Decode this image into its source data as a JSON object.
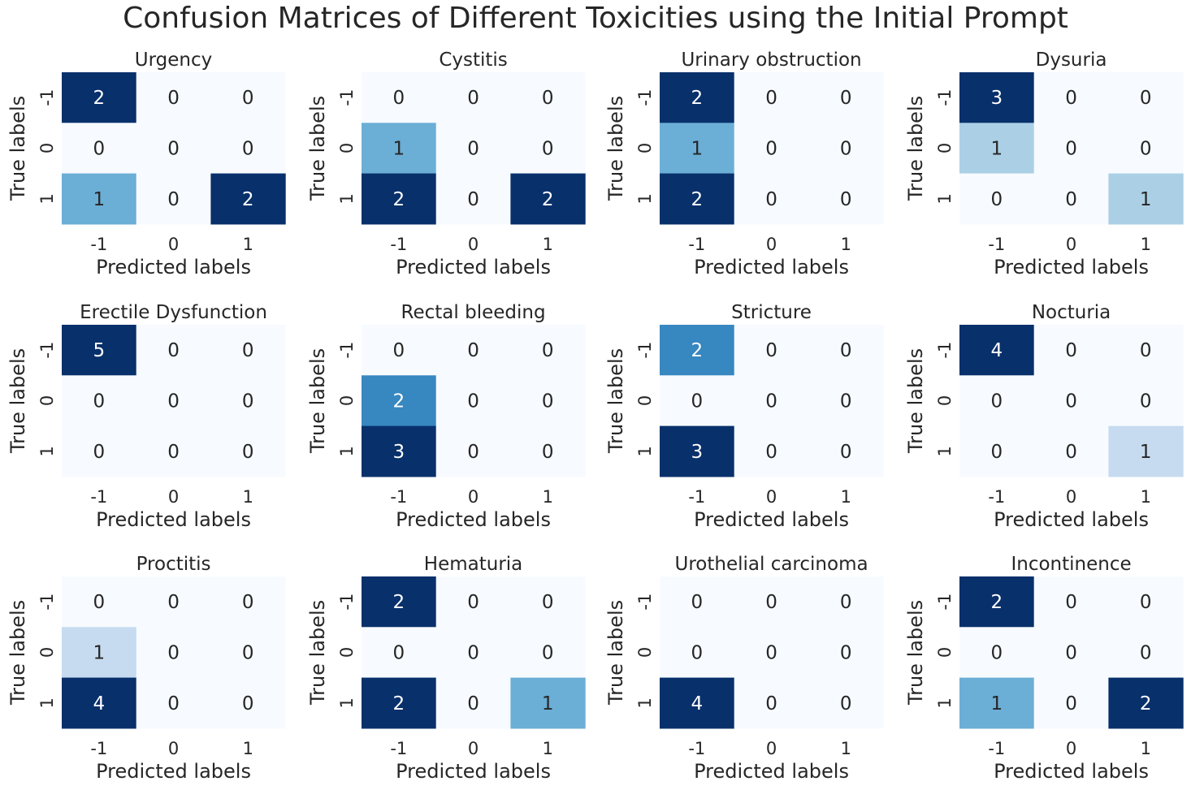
{
  "figure": {
    "title": "Confusion Matrices of Different Toxicities using the Initial Prompt"
  },
  "chart_data": [
    {
      "type": "heatmap",
      "title": "Urgency",
      "xlabel": "Predicted labels",
      "ylabel": "True labels",
      "x_tick_labels": [
        "-1",
        "0",
        "1"
      ],
      "y_tick_labels": [
        "-1",
        "0",
        "1"
      ],
      "matrix": [
        [
          2,
          0,
          0
        ],
        [
          0,
          0,
          0
        ],
        [
          1,
          0,
          2
        ]
      ]
    },
    {
      "type": "heatmap",
      "title": "Cystitis",
      "xlabel": "Predicted labels",
      "ylabel": "True labels",
      "x_tick_labels": [
        "-1",
        "0",
        "1"
      ],
      "y_tick_labels": [
        "-1",
        "0",
        "1"
      ],
      "matrix": [
        [
          0,
          0,
          0
        ],
        [
          1,
          0,
          0
        ],
        [
          2,
          0,
          2
        ]
      ]
    },
    {
      "type": "heatmap",
      "title": "Urinary obstruction",
      "xlabel": "Predicted labels",
      "ylabel": "True labels",
      "x_tick_labels": [
        "-1",
        "0",
        "1"
      ],
      "y_tick_labels": [
        "-1",
        "0",
        "1"
      ],
      "matrix": [
        [
          2,
          0,
          0
        ],
        [
          1,
          0,
          0
        ],
        [
          2,
          0,
          0
        ]
      ]
    },
    {
      "type": "heatmap",
      "title": "Dysuria",
      "xlabel": "Predicted labels",
      "ylabel": "True labels",
      "x_tick_labels": [
        "-1",
        "0",
        "1"
      ],
      "y_tick_labels": [
        "-1",
        "0",
        "1"
      ],
      "matrix": [
        [
          3,
          0,
          0
        ],
        [
          1,
          0,
          0
        ],
        [
          0,
          0,
          1
        ]
      ]
    },
    {
      "type": "heatmap",
      "title": "Erectile Dysfunction",
      "xlabel": "Predicted labels",
      "ylabel": "True labels",
      "x_tick_labels": [
        "-1",
        "0",
        "1"
      ],
      "y_tick_labels": [
        "-1",
        "0",
        "1"
      ],
      "matrix": [
        [
          5,
          0,
          0
        ],
        [
          0,
          0,
          0
        ],
        [
          0,
          0,
          0
        ]
      ]
    },
    {
      "type": "heatmap",
      "title": "Rectal bleeding",
      "xlabel": "Predicted labels",
      "ylabel": "True labels",
      "x_tick_labels": [
        "-1",
        "0",
        "1"
      ],
      "y_tick_labels": [
        "-1",
        "0",
        "1"
      ],
      "matrix": [
        [
          0,
          0,
          0
        ],
        [
          2,
          0,
          0
        ],
        [
          3,
          0,
          0
        ]
      ]
    },
    {
      "type": "heatmap",
      "title": "Stricture",
      "xlabel": "Predicted labels",
      "ylabel": "True labels",
      "x_tick_labels": [
        "-1",
        "0",
        "1"
      ],
      "y_tick_labels": [
        "-1",
        "0",
        "1"
      ],
      "matrix": [
        [
          2,
          0,
          0
        ],
        [
          0,
          0,
          0
        ],
        [
          3,
          0,
          0
        ]
      ]
    },
    {
      "type": "heatmap",
      "title": "Nocturia",
      "xlabel": "Predicted labels",
      "ylabel": "True labels",
      "x_tick_labels": [
        "-1",
        "0",
        "1"
      ],
      "y_tick_labels": [
        "-1",
        "0",
        "1"
      ],
      "matrix": [
        [
          4,
          0,
          0
        ],
        [
          0,
          0,
          0
        ],
        [
          0,
          0,
          1
        ]
      ]
    },
    {
      "type": "heatmap",
      "title": "Proctitis",
      "xlabel": "Predicted labels",
      "ylabel": "True labels",
      "x_tick_labels": [
        "-1",
        "0",
        "1"
      ],
      "y_tick_labels": [
        "-1",
        "0",
        "1"
      ],
      "matrix": [
        [
          0,
          0,
          0
        ],
        [
          1,
          0,
          0
        ],
        [
          4,
          0,
          0
        ]
      ]
    },
    {
      "type": "heatmap",
      "title": "Hematuria",
      "xlabel": "Predicted labels",
      "ylabel": "True labels",
      "x_tick_labels": [
        "-1",
        "0",
        "1"
      ],
      "y_tick_labels": [
        "-1",
        "0",
        "1"
      ],
      "matrix": [
        [
          2,
          0,
          0
        ],
        [
          0,
          0,
          0
        ],
        [
          2,
          0,
          1
        ]
      ]
    },
    {
      "type": "heatmap",
      "title": "Urothelial carcinoma",
      "xlabel": "Predicted labels",
      "ylabel": "True labels",
      "x_tick_labels": [
        "-1",
        "0",
        "1"
      ],
      "y_tick_labels": [
        "-1",
        "0",
        "1"
      ],
      "matrix": [
        [
          0,
          0,
          0
        ],
        [
          0,
          0,
          0
        ],
        [
          4,
          0,
          0
        ]
      ]
    },
    {
      "type": "heatmap",
      "title": "Incontinence",
      "xlabel": "Predicted labels",
      "ylabel": "True labels",
      "x_tick_labels": [
        "-1",
        "0",
        "1"
      ],
      "y_tick_labels": [
        "-1",
        "0",
        "1"
      ],
      "matrix": [
        [
          2,
          0,
          0
        ],
        [
          0,
          0,
          0
        ],
        [
          1,
          0,
          2
        ]
      ]
    }
  ],
  "colormap": {
    "name": "Blues",
    "stops": [
      "#f7fbff",
      "#deebf7",
      "#c6dbef",
      "#9ecae1",
      "#6baed6",
      "#4292c6",
      "#2171b5",
      "#08519c",
      "#08306b"
    ],
    "text_dark": "#262626",
    "text_light": "#ffffff"
  }
}
